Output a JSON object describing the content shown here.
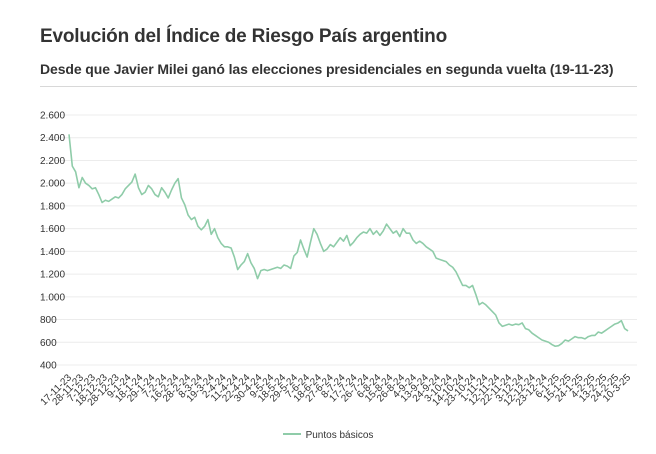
{
  "chart_data": {
    "type": "line",
    "title": "Evolución del Índice de Riesgo País argentino",
    "subtitle": "Desde que Javier Milei ganó las elecciones presidenciales en segunda vuelta (19-11-23)",
    "xlabel": "",
    "ylabel": "",
    "ylim": [
      400,
      2600
    ],
    "yticks": [
      "400",
      "600",
      "800",
      "1.000",
      "1.200",
      "1.400",
      "1.600",
      "1.800",
      "2.000",
      "2.200",
      "2.400",
      "2.600"
    ],
    "grid": true,
    "legend_position": "bottom",
    "color": "#8fcca9",
    "x_tick_labels": [
      "17-11-23",
      "28-11-23",
      "7-12-23",
      "18-12-23",
      "28-12-23",
      "9-1-24",
      "18-1-24",
      "29-1-24",
      "7-2-24",
      "16-2-24",
      "28-2-24",
      "8-3-24",
      "19-3-24",
      "2-4-24",
      "11-4-24",
      "22-4-24",
      "30-4-24",
      "9-5-24",
      "18-5-24",
      "29-5-24",
      "7-6-24",
      "18-6-24",
      "27-6-24",
      "8-7-24",
      "17-7-24",
      "26-7-24",
      "6-8-24",
      "15-8-24",
      "26-8-24",
      "4-9-24",
      "13-9-24",
      "24-9-24",
      "3-10-24",
      "14-10-24",
      "23-10-24",
      "1-11-24",
      "12-11-24",
      "22-11-24",
      "3-12-24",
      "12-12-24",
      "23-12-24",
      "6-1-25",
      "15-1-25",
      "24-1-25",
      "4-2-25",
      "13-2-25",
      "24-2-25",
      "10-3-25"
    ],
    "series": [
      {
        "name": "Puntos básicos",
        "values": [
          2430,
          2150,
          2100,
          1960,
          2050,
          2000,
          1980,
          1950,
          1960,
          1900,
          1830,
          1850,
          1840,
          1860,
          1880,
          1870,
          1900,
          1950,
          1980,
          2010,
          2080,
          1960,
          1900,
          1920,
          1980,
          1950,
          1900,
          1880,
          1960,
          1920,
          1870,
          1940,
          2000,
          2040,
          1870,
          1810,
          1720,
          1680,
          1700,
          1620,
          1590,
          1620,
          1680,
          1550,
          1600,
          1520,
          1470,
          1440,
          1440,
          1430,
          1350,
          1240,
          1280,
          1310,
          1380,
          1300,
          1250,
          1160,
          1230,
          1240,
          1230,
          1240,
          1250,
          1260,
          1250,
          1280,
          1270,
          1250,
          1360,
          1390,
          1500,
          1420,
          1350,
          1480,
          1600,
          1550,
          1470,
          1400,
          1420,
          1460,
          1440,
          1480,
          1520,
          1490,
          1540,
          1450,
          1480,
          1520,
          1550,
          1570,
          1560,
          1600,
          1550,
          1580,
          1540,
          1580,
          1640,
          1600,
          1560,
          1580,
          1530,
          1600,
          1560,
          1560,
          1500,
          1470,
          1490,
          1470,
          1440,
          1420,
          1400,
          1340,
          1330,
          1320,
          1310,
          1280,
          1260,
          1220,
          1160,
          1100,
          1100,
          1080,
          1100,
          1020,
          930,
          950,
          930,
          900,
          870,
          840,
          770,
          740,
          750,
          760,
          750,
          760,
          755,
          770,
          720,
          710,
          680,
          660,
          640,
          620,
          610,
          600,
          580,
          565,
          570,
          590,
          620,
          610,
          630,
          650,
          640,
          640,
          630,
          650,
          660,
          660,
          690,
          680,
          700,
          720,
          740,
          760,
          770,
          790,
          720,
          700
        ]
      }
    ]
  }
}
